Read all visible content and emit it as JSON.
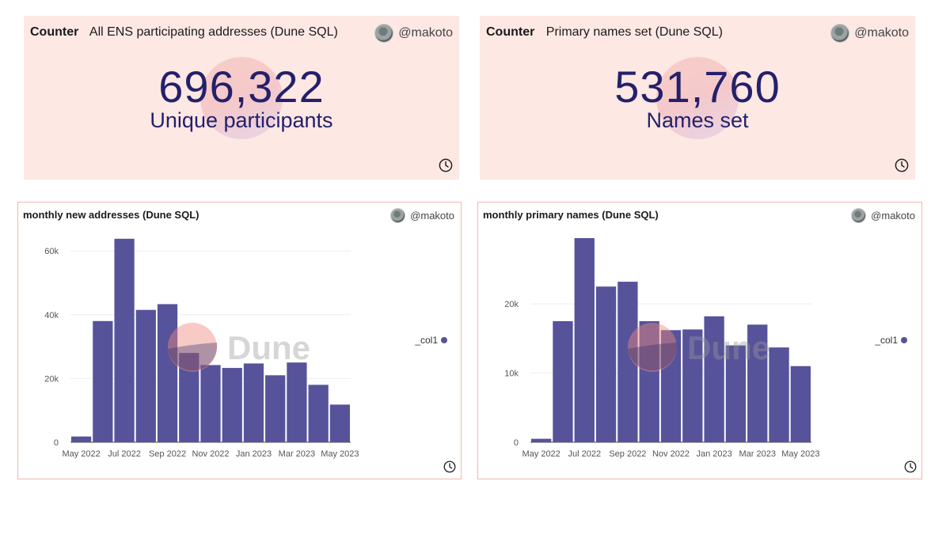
{
  "counters": [
    {
      "kind": "Counter",
      "title": "All ENS participating addresses (Dune SQL)",
      "author": "@makoto",
      "value": "696,322",
      "label": "Unique participants"
    },
    {
      "kind": "Counter",
      "title": "Primary names set (Dune SQL)",
      "author": "@makoto",
      "value": "531,760",
      "label": "Names set"
    }
  ],
  "watermark": "Dune",
  "colors": {
    "bar": "#56539a",
    "accent": "#24206b",
    "counter_bg": "#fde8e4",
    "border": "#f3b6ad"
  },
  "chart_data": [
    {
      "type": "bar",
      "title": "monthly new addresses (Dune SQL)",
      "author": "@makoto",
      "series_name": "_col1",
      "categories": [
        "May 2022",
        "Jun 2022",
        "Jul 2022",
        "Aug 2022",
        "Sep 2022",
        "Oct 2022",
        "Nov 2022",
        "Dec 2022",
        "Jan 2023",
        "Feb 2023",
        "Mar 2023",
        "Apr 2023",
        "May 2023"
      ],
      "values": [
        1800,
        38000,
        63800,
        41500,
        43300,
        28000,
        24200,
        23300,
        24700,
        21000,
        25000,
        18000,
        11800
      ],
      "x_tick_labels": [
        "May 2022",
        "Jul 2022",
        "Sep 2022",
        "Nov 2022",
        "Jan 2023",
        "Mar 2023",
        "May 2023"
      ],
      "y_ticks": [
        0,
        20000,
        40000,
        60000
      ],
      "y_tick_labels": [
        "0",
        "20k",
        "40k",
        "60k"
      ],
      "ylim": [
        0,
        64000
      ],
      "legend": "right",
      "grid": true
    },
    {
      "type": "bar",
      "title": "monthly primary names (Dune SQL)",
      "author": "@makoto",
      "series_name": "_col1",
      "categories": [
        "May 2022",
        "Jun 2022",
        "Jul 2022",
        "Aug 2022",
        "Sep 2022",
        "Oct 2022",
        "Nov 2022",
        "Dec 2022",
        "Jan 2023",
        "Feb 2023",
        "Mar 2023",
        "Apr 2023",
        "May 2023"
      ],
      "values": [
        500,
        17500,
        29500,
        22500,
        23200,
        17500,
        16200,
        16300,
        18200,
        14000,
        17000,
        13700,
        11000
      ],
      "x_tick_labels": [
        "May 2022",
        "Jul 2022",
        "Sep 2022",
        "Nov 2022",
        "Jan 2023",
        "Mar 2023",
        "May 2023"
      ],
      "y_ticks": [
        0,
        10000,
        20000
      ],
      "y_tick_labels": [
        "0",
        "10k",
        "20k"
      ],
      "ylim": [
        0,
        29500
      ],
      "legend": "right",
      "grid": true
    }
  ]
}
